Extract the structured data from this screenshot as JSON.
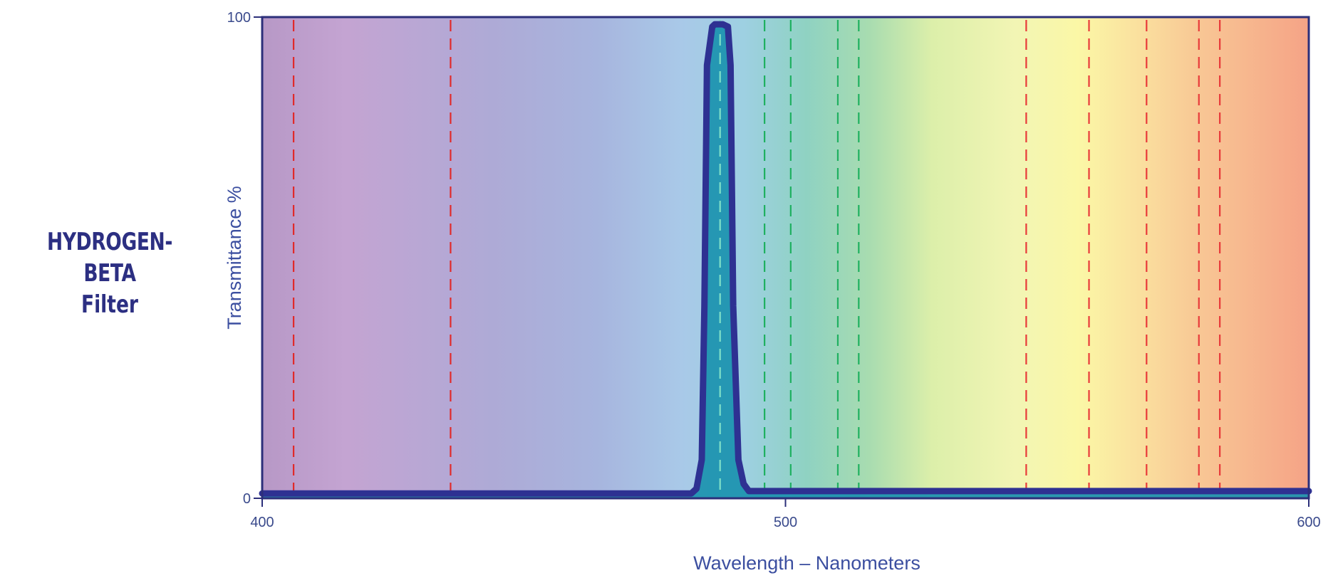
{
  "side_title": {
    "line1": "HYDROGEN-BETA",
    "line2": "Filter"
  },
  "chart_data": {
    "type": "line",
    "title": "",
    "xlabel": "Wavelength – Nanometers",
    "ylabel": "Transmittance %",
    "xlim": [
      400,
      600
    ],
    "ylim": [
      0,
      100
    ],
    "x_ticks": [
      400,
      500,
      600
    ],
    "y_ticks": [
      0,
      100
    ],
    "grid": false,
    "background": "visible spectrum gradient violet to red",
    "series": [
      {
        "x": [
          400,
          482,
          483,
          484,
          484.5,
          485,
          486,
          486.5,
          487,
          488,
          489,
          489.5,
          490,
          491,
          492,
          493,
          600
        ],
        "y": [
          1,
          1,
          2,
          8,
          40,
          90,
          98,
          98.5,
          98.5,
          98.5,
          98,
          90,
          40,
          8,
          3,
          1.5,
          1.5
        ],
        "color": "#2e3192",
        "fill": "#1f93b0"
      }
    ],
    "emission_lines": [
      {
        "wavelength": 406,
        "color": "#e02a2a"
      },
      {
        "wavelength": 436,
        "color": "#e02a2a"
      },
      {
        "wavelength": 487.5,
        "color": "#7fe0c8"
      },
      {
        "wavelength": 496,
        "color": "#1fb060"
      },
      {
        "wavelength": 501,
        "color": "#1fb060"
      },
      {
        "wavelength": 510,
        "color": "#1fb060"
      },
      {
        "wavelength": 514,
        "color": "#1fb060"
      },
      {
        "wavelength": 546,
        "color": "#e83a3a"
      },
      {
        "wavelength": 558,
        "color": "#e83a3a"
      },
      {
        "wavelength": 569,
        "color": "#e83a3a"
      },
      {
        "wavelength": 579,
        "color": "#e83a3a"
      },
      {
        "wavelength": 583,
        "color": "#e83a3a"
      }
    ]
  }
}
